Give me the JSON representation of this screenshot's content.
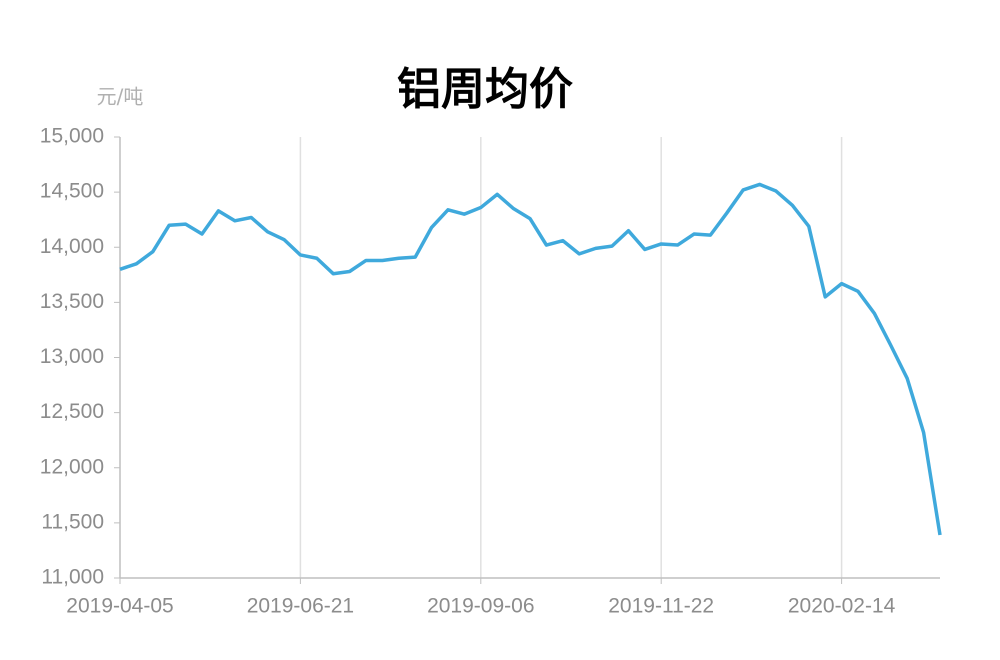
{
  "chart_data": {
    "type": "line",
    "title": "铝周均价",
    "y_label": "元/吨",
    "categories": [
      "2019-04-05",
      null,
      null,
      null,
      null,
      null,
      null,
      null,
      null,
      null,
      null,
      "2019-06-21",
      null,
      null,
      null,
      null,
      null,
      null,
      null,
      null,
      null,
      null,
      "2019-09-06",
      null,
      null,
      null,
      null,
      null,
      null,
      null,
      null,
      null,
      null,
      "2019-11-22",
      null,
      null,
      null,
      null,
      null,
      null,
      null,
      null,
      null,
      null,
      "2020-02-14",
      null,
      null,
      null,
      null,
      null,
      null
    ],
    "series": [
      {
        "name": "铝周均价",
        "color": "#3fa9dc",
        "values": [
          13800,
          13850,
          13960,
          14200,
          14210,
          14120,
          14330,
          14240,
          14270,
          14140,
          14070,
          13930,
          13900,
          13760,
          13780,
          13880,
          13880,
          13900,
          13910,
          14180,
          14340,
          14300,
          14360,
          14480,
          14350,
          14260,
          14020,
          14060,
          13940,
          13990,
          14010,
          14150,
          13980,
          14030,
          14020,
          14120,
          14110,
          14310,
          14520,
          14570,
          14510,
          14380,
          14190,
          13550,
          13670,
          13600,
          13400,
          13110,
          12810,
          12320,
          11390
        ]
      }
    ],
    "ylim": [
      11000,
      15000
    ],
    "yticks": [
      {
        "value": 11000,
        "label": "11,000"
      },
      {
        "value": 11500,
        "label": "11,500"
      },
      {
        "value": 12000,
        "label": "12,000"
      },
      {
        "value": 12500,
        "label": "12,500"
      },
      {
        "value": 13000,
        "label": "13,000"
      },
      {
        "value": 13500,
        "label": "13,500"
      },
      {
        "value": 14000,
        "label": "14,000"
      },
      {
        "value": 14500,
        "label": "14,500"
      },
      {
        "value": 15000,
        "label": "15,000"
      }
    ],
    "x_grid": true
  }
}
